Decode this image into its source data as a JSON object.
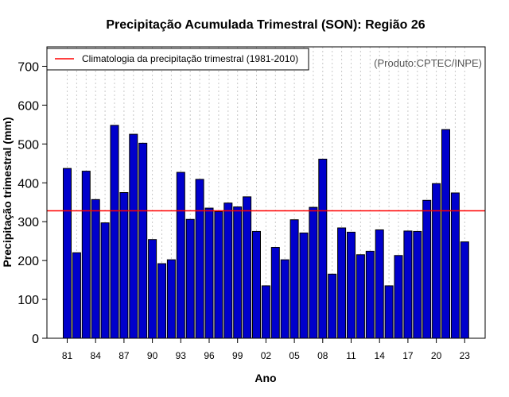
{
  "chart_data": {
    "type": "bar",
    "title": "Precipitação Acumulada Trimestral (SON): Região 26",
    "xlabel": "Ano",
    "ylabel": "Precipitação trimestral (mm)",
    "ylim": [
      0,
      750
    ],
    "yticks": [
      0,
      100,
      200,
      300,
      400,
      500,
      600,
      700
    ],
    "years": [
      1981,
      1982,
      1983,
      1984,
      1985,
      1986,
      1987,
      1988,
      1989,
      1990,
      1991,
      1992,
      1993,
      1994,
      1995,
      1996,
      1997,
      1998,
      1999,
      2000,
      2001,
      2002,
      2003,
      2004,
      2005,
      2006,
      2007,
      2008,
      2009,
      2010,
      2011,
      2012,
      2013,
      2014,
      2015,
      2016,
      2017,
      2018,
      2019,
      2020,
      2021,
      2022,
      2023
    ],
    "values": [
      437,
      220,
      430,
      357,
      297,
      548,
      375,
      525,
      502,
      254,
      192,
      202,
      427,
      306,
      409,
      335,
      326,
      348,
      338,
      364,
      275,
      135,
      234,
      202,
      305,
      271,
      337,
      461,
      165,
      284,
      273,
      215,
      224,
      279,
      135,
      213,
      276,
      275,
      355,
      398,
      537,
      374,
      248
    ],
    "tick_labels": [
      "81",
      "84",
      "87",
      "90",
      "93",
      "96",
      "99",
      "02",
      "05",
      "08",
      "11",
      "14",
      "17",
      "20",
      "23"
    ],
    "tick_years": [
      1981,
      1984,
      1987,
      1990,
      1993,
      1996,
      1999,
      2002,
      2005,
      2008,
      2011,
      2014,
      2017,
      2020,
      2023
    ],
    "climatology": {
      "value": 328,
      "label": "Climatologia da precipitação trimestral (1981-2010)",
      "color": "#ff0000"
    },
    "legend_position": "top-left",
    "credit": "(Produto:CPTEC/INPE)",
    "bar_color": "#0000cc",
    "grid": "vertical-dotted"
  }
}
